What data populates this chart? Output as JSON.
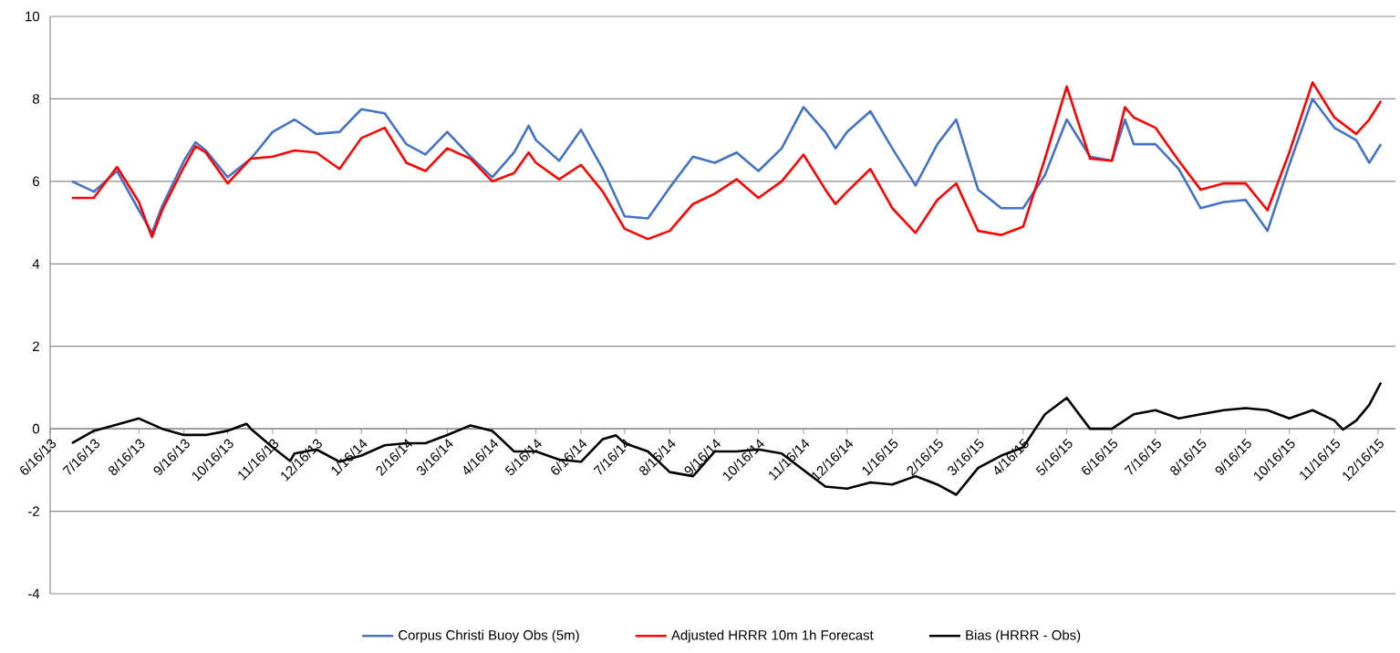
{
  "chart_data": {
    "type": "line",
    "xlim": [
      "2013-06-16",
      "2015-12-28"
    ],
    "ylim": [
      -4,
      10
    ],
    "yticks": [
      -4,
      -2,
      0,
      2,
      4,
      6,
      8,
      10
    ],
    "xticks": [
      {
        "value": "2013-06-16",
        "label": "6/16/13"
      },
      {
        "value": "2013-07-16",
        "label": "7/16/13"
      },
      {
        "value": "2013-08-16",
        "label": "8/16/13"
      },
      {
        "value": "2013-09-16",
        "label": "9/16/13"
      },
      {
        "value": "2013-10-16",
        "label": "10/16/13"
      },
      {
        "value": "2013-11-16",
        "label": "11/16/13"
      },
      {
        "value": "2013-12-16",
        "label": "12/16/13"
      },
      {
        "value": "2014-01-16",
        "label": "1/16/14"
      },
      {
        "value": "2014-02-16",
        "label": "2/16/14"
      },
      {
        "value": "2014-03-16",
        "label": "3/16/14"
      },
      {
        "value": "2014-04-16",
        "label": "4/16/14"
      },
      {
        "value": "2014-05-16",
        "label": "5/16/14"
      },
      {
        "value": "2014-06-16",
        "label": "6/16/14"
      },
      {
        "value": "2014-07-16",
        "label": "7/16/14"
      },
      {
        "value": "2014-08-16",
        "label": "8/16/14"
      },
      {
        "value": "2014-09-16",
        "label": "9/16/14"
      },
      {
        "value": "2014-10-16",
        "label": "10/16/14"
      },
      {
        "value": "2014-11-16",
        "label": "11/16/14"
      },
      {
        "value": "2014-12-16",
        "label": "12/16/14"
      },
      {
        "value": "2015-01-16",
        "label": "1/16/15"
      },
      {
        "value": "2015-02-16",
        "label": "2/16/15"
      },
      {
        "value": "2015-03-16",
        "label": "3/16/15"
      },
      {
        "value": "2015-04-16",
        "label": "4/16/15"
      },
      {
        "value": "2015-05-16",
        "label": "5/16/15"
      },
      {
        "value": "2015-06-16",
        "label": "6/16/15"
      },
      {
        "value": "2015-07-16",
        "label": "7/16/15"
      },
      {
        "value": "2015-08-16",
        "label": "8/16/15"
      },
      {
        "value": "2015-09-16",
        "label": "9/16/15"
      },
      {
        "value": "2015-10-16",
        "label": "10/16/15"
      },
      {
        "value": "2015-11-16",
        "label": "11/16/15"
      },
      {
        "value": "2015-12-16",
        "label": "12/16/15"
      }
    ],
    "grid": "y",
    "legend": "bottom",
    "line_style": "solid",
    "x": [
      "2013-07-01",
      "2013-07-16",
      "2013-08-01",
      "2013-08-16",
      "2013-08-25",
      "2013-09-01",
      "2013-09-16",
      "2013-09-24",
      "2013-10-01",
      "2013-10-16",
      "2013-11-01",
      "2013-11-16",
      "2013-12-01",
      "2013-12-16",
      "2014-01-01",
      "2014-01-16",
      "2014-02-01",
      "2014-02-16",
      "2014-03-01",
      "2014-03-16",
      "2014-04-01",
      "2014-04-16",
      "2014-05-01",
      "2014-05-11",
      "2014-05-16",
      "2014-06-01",
      "2014-06-16",
      "2014-07-01",
      "2014-07-16",
      "2014-08-01",
      "2014-08-16",
      "2014-09-01",
      "2014-09-16",
      "2014-10-01",
      "2014-10-16",
      "2014-11-01",
      "2014-11-16",
      "2014-12-01",
      "2014-12-08",
      "2014-12-16",
      "2015-01-01",
      "2015-01-16",
      "2015-02-01",
      "2015-02-16",
      "2015-03-01",
      "2015-03-16",
      "2015-04-01",
      "2015-04-16",
      "2015-05-01",
      "2015-05-16",
      "2015-06-01",
      "2015-06-16",
      "2015-06-25",
      "2015-07-01",
      "2015-07-16",
      "2015-08-01",
      "2015-08-16",
      "2015-09-01",
      "2015-09-16",
      "2015-10-01",
      "2015-10-16",
      "2015-11-01",
      "2015-11-16",
      "2015-12-01",
      "2015-12-10",
      "2015-12-18"
    ],
    "series": [
      {
        "name": "Corpus Christi Buoy Obs (5m)",
        "color": "#4472c4",
        "values": [
          6.0,
          5.75,
          6.25,
          5.3,
          4.75,
          5.4,
          6.5,
          6.95,
          6.75,
          6.1,
          6.55,
          7.2,
          7.5,
          7.15,
          7.2,
          7.75,
          7.65,
          6.9,
          6.65,
          7.2,
          6.6,
          6.1,
          6.7,
          7.35,
          7.0,
          6.5,
          7.25,
          6.3,
          5.15,
          5.1,
          5.85,
          6.6,
          6.45,
          6.7,
          6.25,
          6.8,
          7.8,
          7.2,
          6.8,
          7.2,
          7.7,
          6.8,
          5.9,
          6.9,
          7.5,
          5.8,
          5.35,
          5.35,
          6.15,
          7.5,
          6.6,
          6.5,
          7.5,
          6.9,
          6.9,
          6.3,
          5.35,
          5.5,
          5.55,
          4.8,
          6.4,
          8.0,
          7.3,
          7.0,
          6.45,
          6.9
        ]
      },
      {
        "name": "Adjusted HRRR 10m 1h Forecast",
        "color": "#ff0000",
        "values": [
          5.6,
          5.6,
          6.35,
          5.5,
          4.65,
          5.3,
          6.35,
          6.85,
          6.7,
          5.95,
          6.55,
          6.6,
          6.75,
          6.7,
          6.3,
          7.05,
          7.3,
          6.45,
          6.25,
          6.8,
          6.55,
          6.0,
          6.2,
          6.7,
          6.45,
          6.05,
          6.4,
          5.75,
          4.85,
          4.6,
          4.8,
          5.45,
          5.7,
          6.05,
          5.6,
          6.0,
          6.65,
          5.8,
          5.45,
          5.75,
          6.3,
          5.35,
          4.75,
          5.55,
          5.95,
          4.8,
          4.7,
          4.9,
          6.55,
          8.3,
          6.55,
          6.5,
          7.8,
          7.55,
          7.3,
          6.5,
          5.8,
          5.95,
          5.95,
          5.3,
          6.7,
          8.4,
          7.55,
          7.15,
          7.5,
          7.95
        ]
      },
      {
        "name": "Bias (HRRR - Obs)",
        "color": "#000000",
        "x": [
          "2013-07-01",
          "2013-07-16",
          "2013-08-01",
          "2013-08-16",
          "2013-09-01",
          "2013-09-16",
          "2013-10-01",
          "2013-10-16",
          "2013-10-29",
          "2013-11-01",
          "2013-11-16",
          "2013-11-28",
          "2013-12-01",
          "2013-12-16",
          "2014-01-01",
          "2014-01-16",
          "2014-02-01",
          "2014-02-16",
          "2014-03-01",
          "2014-03-16",
          "2014-04-01",
          "2014-04-16",
          "2014-05-01",
          "2014-05-16",
          "2014-06-01",
          "2014-06-16",
          "2014-07-01",
          "2014-07-10",
          "2014-07-16",
          "2014-08-01",
          "2014-08-16",
          "2014-09-01",
          "2014-09-16",
          "2014-10-01",
          "2014-10-16",
          "2014-11-01",
          "2014-11-16",
          "2014-12-01",
          "2014-12-16",
          "2015-01-01",
          "2015-01-16",
          "2015-02-01",
          "2015-02-16",
          "2015-03-01",
          "2015-03-16",
          "2015-04-01",
          "2015-04-16",
          "2015-05-01",
          "2015-05-16",
          "2015-06-01",
          "2015-06-16",
          "2015-07-01",
          "2015-07-16",
          "2015-08-01",
          "2015-08-16",
          "2015-09-01",
          "2015-09-16",
          "2015-10-01",
          "2015-10-16",
          "2015-11-01",
          "2015-11-16",
          "2015-11-22",
          "2015-12-01",
          "2015-12-10",
          "2015-12-18"
        ],
        "values": [
          -0.35,
          -0.05,
          0.1,
          0.25,
          0.0,
          -0.15,
          -0.15,
          -0.05,
          0.12,
          0.0,
          -0.45,
          -0.78,
          -0.6,
          -0.5,
          -0.8,
          -0.65,
          -0.4,
          -0.35,
          -0.35,
          -0.15,
          0.08,
          -0.05,
          -0.55,
          -0.55,
          -0.75,
          -0.8,
          -0.25,
          -0.16,
          -0.35,
          -0.55,
          -1.05,
          -1.15,
          -0.55,
          -0.55,
          -0.5,
          -0.6,
          -1.0,
          -1.4,
          -1.45,
          -1.3,
          -1.35,
          -1.15,
          -1.35,
          -1.6,
          -0.95,
          -0.65,
          -0.45,
          0.35,
          0.75,
          0.0,
          0.0,
          0.35,
          0.45,
          0.25,
          0.35,
          0.45,
          0.5,
          0.45,
          0.25,
          0.45,
          0.2,
          -0.02,
          0.2,
          0.58,
          1.12
        ]
      }
    ]
  }
}
